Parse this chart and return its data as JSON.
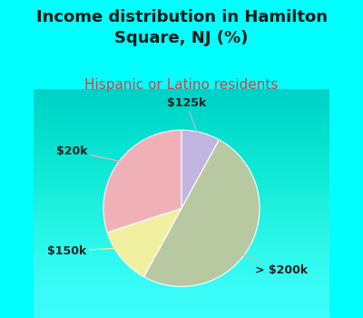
{
  "title": "Income distribution in Hamilton\nSquare, NJ (%)",
  "subtitle": "Hispanic or Latino residents",
  "title_color": "#1a1a1a",
  "subtitle_color": "#cc4444",
  "background_color": "#00ffff",
  "chart_bg_grad_top": "#f0f8f0",
  "chart_bg_grad_bottom": "#c8e8d8",
  "slices": [
    {
      "label": "$125k",
      "value": 8,
      "color": "#c0b4e0"
    },
    {
      "label": "> $200k",
      "value": 50,
      "color": "#b8c8a0"
    },
    {
      "label": "$150k",
      "value": 12,
      "color": "#f0f0a0"
    },
    {
      "label": "$20k",
      "value": 30,
      "color": "#f0b0b8"
    }
  ],
  "startangle": 90,
  "label_fontsize": 9,
  "title_fontsize": 13,
  "subtitle_fontsize": 11,
  "label_color": "#222222"
}
